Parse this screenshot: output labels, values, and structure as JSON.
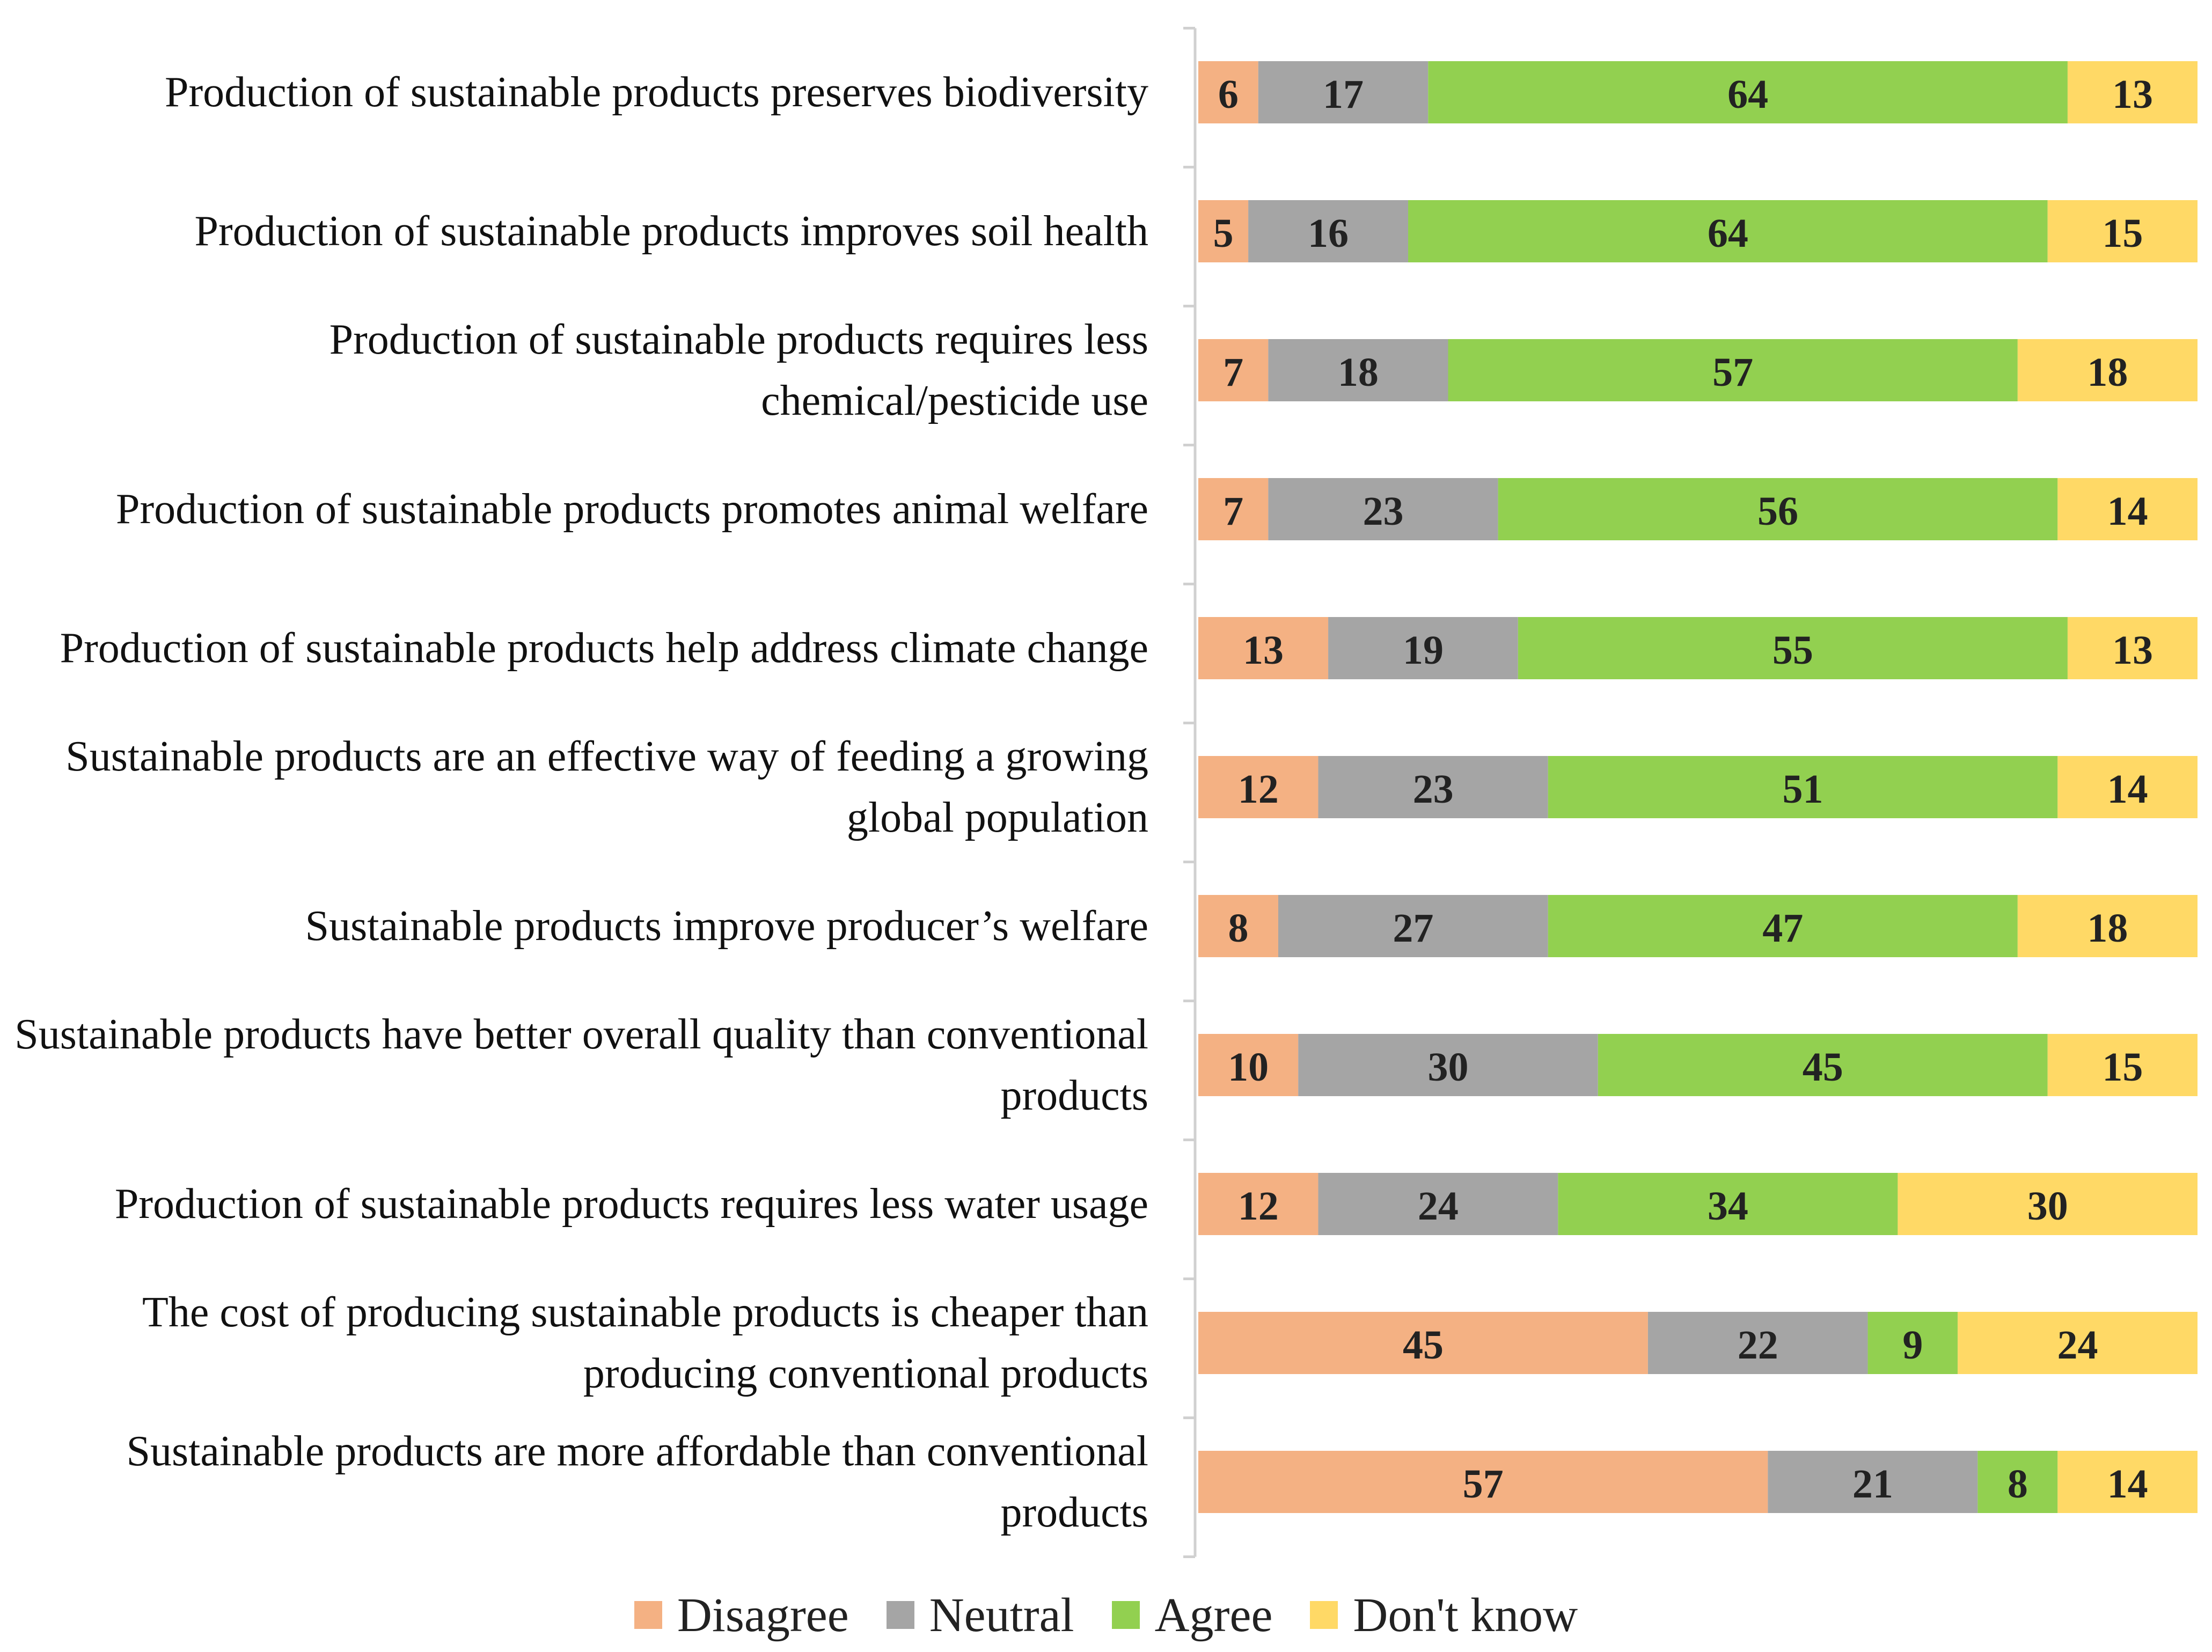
{
  "chart_data": {
    "type": "bar",
    "orientation": "horizontal",
    "stacked": true,
    "categories": [
      "Production of sustainable products preserves biodiversity",
      "Production of sustainable products improves soil health",
      "Production of sustainable products requires less chemical/pesticide use",
      "Production of sustainable products promotes animal welfare",
      "Production of sustainable products help address climate change",
      "Sustainable products are an effective way of feeding a growing global population",
      "Sustainable products improve producer’s  welfare",
      "Sustainable products have better overall quality than conventional products",
      "Production of sustainable products requires less water usage",
      "The cost of producing sustainable products is cheaper than producing conventional products",
      "Sustainable products are more affordable than conventional products"
    ],
    "series": [
      {
        "name": "Disagree",
        "color": "#f4b183",
        "values": [
          6,
          5,
          7,
          7,
          13,
          12,
          8,
          10,
          12,
          45,
          57
        ]
      },
      {
        "name": "Neutral",
        "color": "#a5a5a5",
        "values": [
          17,
          16,
          18,
          23,
          19,
          23,
          27,
          30,
          24,
          22,
          21
        ]
      },
      {
        "name": "Agree",
        "color": "#92d050",
        "values": [
          64,
          64,
          57,
          56,
          55,
          51,
          47,
          45,
          34,
          9,
          8
        ]
      },
      {
        "name": "Don't know",
        "color": "#ffd966",
        "values": [
          13,
          15,
          18,
          14,
          13,
          14,
          18,
          15,
          30,
          24,
          14
        ]
      }
    ],
    "xlim": [
      0,
      100
    ],
    "legend": "bottom"
  }
}
